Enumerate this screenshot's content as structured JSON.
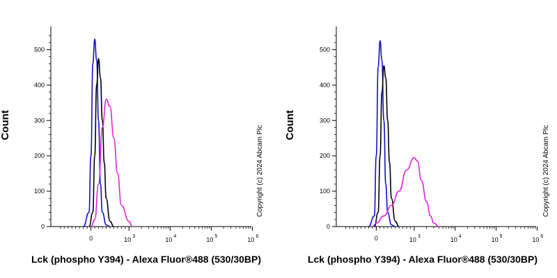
{
  "chart_data": [
    {
      "type": "histogram-overlay",
      "xlabel": "Lck (phospho Y394) - Alexa Fluor®488 (530/30BP)",
      "ylabel": "Count",
      "copyright": "Copyright (c) 2024 Abcam Plc",
      "x_scale": "biexponential",
      "xticks": [
        {
          "label": "0",
          "value": 0
        },
        {
          "label": "3",
          "value": 1000
        },
        {
          "label": "4",
          "value": 10000
        },
        {
          "label": "5",
          "value": 100000
        },
        {
          "label": "6",
          "value": 1000000
        }
      ],
      "ylim": [
        0,
        550
      ],
      "yticks": [
        0,
        100,
        200,
        300,
        400,
        500
      ],
      "grid": false,
      "series": [
        {
          "color": "#1010c8",
          "x": [
            -200,
            -50,
            0,
            50,
            100,
            150,
            200,
            250,
            300,
            400,
            500
          ],
          "y": [
            0,
            40,
            200,
            460,
            530,
            470,
            300,
            120,
            40,
            5,
            0
          ]
        },
        {
          "color": "#000000",
          "x": [
            -50,
            50,
            100,
            150,
            200,
            250,
            300,
            350,
            400,
            500,
            600
          ],
          "y": [
            0,
            40,
            200,
            400,
            475,
            420,
            300,
            180,
            80,
            15,
            0
          ]
        },
        {
          "color": "#e020e0",
          "x": [
            0,
            100,
            200,
            300,
            400,
            500,
            600,
            700,
            800,
            1000,
            1200
          ],
          "y": [
            0,
            20,
            120,
            280,
            360,
            340,
            250,
            150,
            60,
            15,
            0
          ]
        }
      ]
    },
    {
      "type": "histogram-overlay",
      "xlabel": "Lck (phospho Y394) - Alexa Fluor®488 (530/30BP)",
      "ylabel": "Count",
      "copyright": "Copyright (c) 2024 Abcam Plc",
      "x_scale": "biexponential",
      "xticks": [
        {
          "label": "0",
          "value": 0
        },
        {
          "label": "3",
          "value": 1000
        },
        {
          "label": "4",
          "value": 10000
        },
        {
          "label": "5",
          "value": 100000
        },
        {
          "label": "6",
          "value": 1000000
        }
      ],
      "ylim": [
        0,
        550
      ],
      "yticks": [
        0,
        100,
        200,
        300,
        400,
        500
      ],
      "grid": false,
      "series": [
        {
          "color": "#1010c8",
          "x": [
            -200,
            -50,
            0,
            50,
            100,
            150,
            200,
            250,
            300,
            400,
            500
          ],
          "y": [
            0,
            30,
            200,
            450,
            525,
            470,
            300,
            120,
            40,
            5,
            0
          ]
        },
        {
          "color": "#000000",
          "x": [
            -50,
            50,
            100,
            150,
            200,
            250,
            300,
            350,
            400,
            500,
            600
          ],
          "y": [
            0,
            40,
            200,
            380,
            455,
            420,
            300,
            180,
            80,
            15,
            0
          ]
        },
        {
          "color": "#e020e0",
          "x": [
            -100,
            0,
            200,
            400,
            600,
            800,
            1000,
            1200,
            1500,
            2000,
            2500,
            3000,
            4000
          ],
          "y": [
            0,
            10,
            30,
            60,
            100,
            160,
            195,
            185,
            130,
            70,
            30,
            10,
            0
          ]
        }
      ]
    }
  ]
}
